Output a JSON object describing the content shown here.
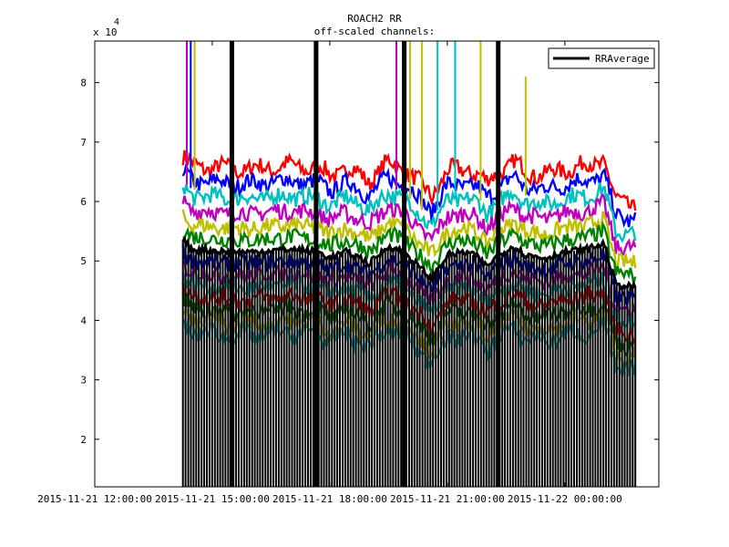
{
  "chart_data": {
    "type": "line",
    "title": "ROACH2 RR",
    "subtitle": "off-scaled channels:",
    "xlabel": "",
    "ylabel": "",
    "y_multiplier_label": "x 10",
    "y_multiplier_exponent": "4",
    "x_range_hours": [
      0,
      14.4
    ],
    "ylim": [
      1.2,
      8.7
    ],
    "y_ticks": [
      2,
      3,
      4,
      5,
      6,
      7,
      8
    ],
    "y_tick_labels": [
      "2",
      "3",
      "4",
      "5",
      "6",
      "7",
      "8"
    ],
    "x_ticks_hours": [
      0,
      3,
      6,
      9,
      12
    ],
    "x_tick_labels": [
      "2015-11-21 12:00:00",
      "2015-11-21 15:00:00",
      "2015-11-21 18:00:00",
      "2015-11-21 21:00:00",
      "2015-11-22 00:00:00"
    ],
    "legend": {
      "position": "top-right",
      "entries": [
        "RRAverage"
      ]
    },
    "average_series": {
      "name": "RRAverage",
      "color": "#000000",
      "x_hours": [
        2.25,
        2.4,
        2.5,
        3.5,
        4.0,
        5.0,
        5.7,
        6.0,
        6.4,
        6.8,
        7.0,
        7.5,
        7.9,
        8.2,
        8.6,
        9.0,
        9.5,
        9.8,
        10.0,
        10.3,
        10.7,
        11.0,
        11.5,
        12.0,
        12.6,
        13.0,
        13.3,
        13.8
      ],
      "values": [
        5.35,
        5.25,
        5.2,
        5.15,
        5.15,
        5.2,
        5.15,
        5.05,
        5.15,
        5.05,
        4.95,
        5.25,
        5.15,
        4.95,
        4.7,
        5.1,
        5.15,
        5.05,
        4.9,
        5.1,
        5.25,
        5.1,
        5.05,
        5.15,
        5.2,
        5.3,
        4.6,
        4.55
      ]
    },
    "channel_levels": [
      {
        "color": "#ff0000",
        "level": 6.55
      },
      {
        "color": "#0000ff",
        "level": 6.3
      },
      {
        "color": "#00bfbf",
        "level": 6.05
      },
      {
        "color": "#bf00bf",
        "level": 5.8
      },
      {
        "color": "#bfbf00",
        "level": 5.55
      },
      {
        "color": "#008000",
        "level": 5.35
      },
      {
        "color": "#0000ff",
        "level": 4.95
      },
      {
        "color": "#bf00bf",
        "level": 4.75
      },
      {
        "color": "#00bfbf",
        "level": 4.55
      },
      {
        "color": "#ff0000",
        "level": 4.35
      },
      {
        "color": "#008000",
        "level": 4.15
      },
      {
        "color": "#bfbf00",
        "level": 3.95
      },
      {
        "color": "#00bfbf",
        "level": 3.75
      }
    ],
    "spikes": [
      {
        "x_hours": 2.35,
        "color": "#bf00bf",
        "top": 8.7
      },
      {
        "x_hours": 2.45,
        "color": "#0000ff",
        "top": 8.7
      },
      {
        "x_hours": 2.55,
        "color": "#bfbf00",
        "top": 8.7
      },
      {
        "x_hours": 3.5,
        "color": "#000000",
        "top": 8.7
      },
      {
        "x_hours": 5.65,
        "color": "#000000",
        "top": 8.7
      },
      {
        "x_hours": 7.7,
        "color": "#bf00bf",
        "top": 8.7
      },
      {
        "x_hours": 7.9,
        "color": "#000000",
        "top": 8.7
      },
      {
        "x_hours": 8.05,
        "color": "#bfbf00",
        "top": 8.7
      },
      {
        "x_hours": 8.35,
        "color": "#bfbf00",
        "top": 8.7
      },
      {
        "x_hours": 8.75,
        "color": "#00bfbf",
        "top": 8.7
      },
      {
        "x_hours": 9.2,
        "color": "#00bfbf",
        "top": 8.7
      },
      {
        "x_hours": 9.85,
        "color": "#bfbf00",
        "top": 8.7
      },
      {
        "x_hours": 10.3,
        "color": "#000000",
        "top": 8.7
      },
      {
        "x_hours": 11.0,
        "color": "#bfbf00",
        "top": 8.1
      }
    ]
  }
}
